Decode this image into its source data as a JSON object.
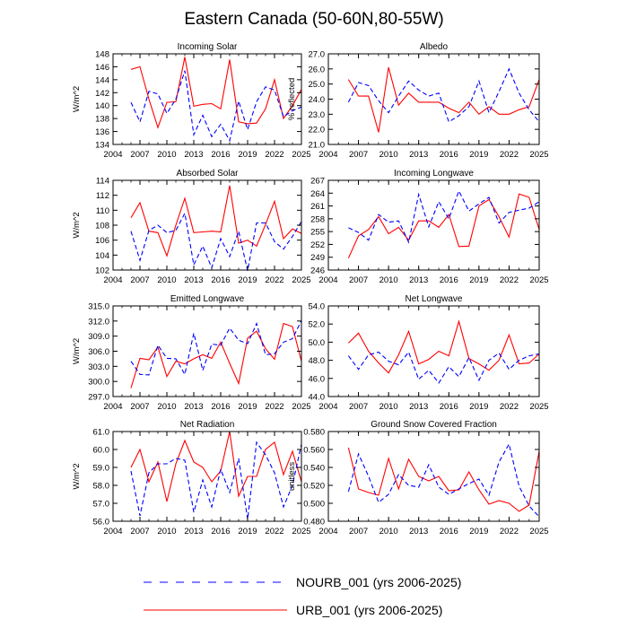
{
  "figure": {
    "title": "Eastern Canada (50-60N,80-55W)",
    "legend": [
      {
        "label": "NOURB_001 (yrs 2006-2025)",
        "style": "dashed",
        "color": "#0000ff"
      },
      {
        "label": "URB_001 (yrs 2006-2025)",
        "style": "solid",
        "color": "#ff0000"
      }
    ]
  },
  "chart_data": [
    {
      "type": "line",
      "title": "Incoming Solar",
      "ylabel": "W/m^2",
      "xlim": [
        2004,
        2025
      ],
      "ylim": [
        134,
        148
      ],
      "xticks": [
        2004,
        2007,
        2010,
        2013,
        2016,
        2019,
        2022,
        2025
      ],
      "yticks": [
        "134",
        "136",
        "138",
        "140",
        "142",
        "144",
        "146",
        "148"
      ],
      "x": [
        2006,
        2007,
        2008,
        2009,
        2010,
        2011,
        2012,
        2013,
        2014,
        2015,
        2016,
        2017,
        2018,
        2019,
        2020,
        2021,
        2022,
        2023,
        2024,
        2025
      ],
      "series": [
        {
          "name": "URB_001 (yrs 2006-2025)",
          "style": "solid",
          "color": "#ff0000",
          "values": [
            145.6,
            146.0,
            141.0,
            136.6,
            140.5,
            140.6,
            147.5,
            139.9,
            140.2,
            140.3,
            139.5,
            147.1,
            137.5,
            137.2,
            137.3,
            139.5,
            144.0,
            138.0,
            140.0,
            142.5
          ]
        },
        {
          "name": "NOURB_001 (yrs 2006-2025)",
          "style": "dashed",
          "color": "#0000ff",
          "values": [
            140.5,
            137.5,
            142.2,
            141.8,
            138.8,
            141.0,
            145.4,
            135.5,
            138.5,
            135.2,
            137.1,
            134.6,
            140.7,
            136.3,
            140.6,
            142.9,
            142.4,
            138.3,
            139.2,
            139.8
          ]
        }
      ]
    },
    {
      "type": "line",
      "title": "Albedo",
      "ylabel": "% reflected",
      "xlim": [
        2004,
        2025
      ],
      "ylim": [
        21,
        27
      ],
      "xticks": [
        2004,
        2007,
        2010,
        2013,
        2016,
        2019,
        2022,
        2025
      ],
      "yticks": [
        "21.0",
        "22.0",
        "23.0",
        "24.0",
        "25.0",
        "26.0",
        "27.0"
      ],
      "x": [
        2006,
        2007,
        2008,
        2009,
        2010,
        2011,
        2012,
        2013,
        2014,
        2015,
        2016,
        2017,
        2018,
        2019,
        2020,
        2021,
        2022,
        2023,
        2024,
        2025
      ],
      "series": [
        {
          "name": "URB_001 (yrs 2006-2025)",
          "style": "solid",
          "color": "#ff0000",
          "values": [
            25.3,
            24.2,
            24.2,
            21.8,
            26.1,
            23.6,
            24.4,
            23.8,
            23.8,
            23.8,
            23.4,
            23.1,
            23.8,
            23.0,
            23.5,
            23.0,
            23.0,
            23.3,
            23.5,
            25.3
          ]
        },
        {
          "name": "NOURB_001 (yrs 2006-2025)",
          "style": "dashed",
          "color": "#0000ff",
          "values": [
            23.8,
            25.1,
            24.9,
            23.9,
            23.1,
            24.2,
            25.2,
            24.6,
            24.2,
            24.4,
            22.5,
            22.9,
            23.5,
            25.2,
            23.1,
            24.5,
            26.0,
            24.4,
            23.3,
            22.5
          ]
        }
      ]
    },
    {
      "type": "line",
      "title": "Absorbed Solar",
      "ylabel": "W/m^2",
      "xlim": [
        2004,
        2025
      ],
      "ylim": [
        102,
        114
      ],
      "xticks": [
        2004,
        2007,
        2010,
        2013,
        2016,
        2019,
        2022,
        2025
      ],
      "yticks": [
        "102",
        "104",
        "106",
        "108",
        "110",
        "112",
        "114"
      ],
      "x": [
        2006,
        2007,
        2008,
        2009,
        2010,
        2011,
        2012,
        2013,
        2014,
        2015,
        2016,
        2017,
        2018,
        2019,
        2020,
        2021,
        2022,
        2023,
        2024,
        2025
      ],
      "series": [
        {
          "name": "URB_001 (yrs 2006-2025)",
          "style": "solid",
          "color": "#ff0000",
          "values": [
            109.0,
            111.0,
            107.2,
            107.0,
            103.9,
            108.0,
            111.6,
            107.0,
            107.1,
            107.2,
            107.1,
            113.3,
            105.6,
            106.0,
            105.2,
            108.1,
            111.2,
            106.2,
            107.5,
            106.9
          ]
        },
        {
          "name": "NOURB_001 (yrs 2006-2025)",
          "style": "dashed",
          "color": "#0000ff",
          "values": [
            107.2,
            103.3,
            107.3,
            108.0,
            107.0,
            107.3,
            109.6,
            102.7,
            105.2,
            102.3,
            106.2,
            103.8,
            107.2,
            101.9,
            108.3,
            108.3,
            105.8,
            104.8,
            106.5,
            108.5
          ]
        }
      ]
    },
    {
      "type": "line",
      "title": "Incoming Longwave",
      "ylabel": "",
      "xlim": [
        2004,
        2025
      ],
      "ylim": [
        246,
        267
      ],
      "xticks": [
        2004,
        2007,
        2010,
        2013,
        2016,
        2019,
        2022,
        2025
      ],
      "yticks": [
        "246",
        "249",
        "252",
        "255",
        "258",
        "261",
        "264",
        "267"
      ],
      "x": [
        2006,
        2007,
        2008,
        2009,
        2010,
        2011,
        2012,
        2013,
        2014,
        2015,
        2016,
        2017,
        2018,
        2019,
        2020,
        2021,
        2022,
        2023,
        2024,
        2025
      ],
      "series": [
        {
          "name": "URB_001 (yrs 2006-2025)",
          "style": "solid",
          "color": "#ff0000",
          "values": [
            248.8,
            254.0,
            255.5,
            258.5,
            254.5,
            256.0,
            253.0,
            257.5,
            257.5,
            256.0,
            259.0,
            251.5,
            251.6,
            261.0,
            262.5,
            258.5,
            253.7,
            263.8,
            263.0,
            255.5
          ]
        },
        {
          "name": "NOURB_001 (yrs 2006-2025)",
          "style": "dashed",
          "color": "#0000ff",
          "values": [
            255.9,
            254.8,
            253.0,
            259.0,
            257.2,
            257.5,
            252.5,
            263.7,
            256.1,
            262.0,
            258.0,
            264.5,
            259.8,
            261.5,
            263.0,
            257.0,
            259.5,
            260.0,
            260.5,
            262.0
          ]
        }
      ]
    },
    {
      "type": "line",
      "title": "Emitted Longwave",
      "ylabel": "W/m^2",
      "xlim": [
        2004,
        2025
      ],
      "ylim": [
        297,
        315
      ],
      "xticks": [
        2004,
        2007,
        2010,
        2013,
        2016,
        2019,
        2022,
        2025
      ],
      "yticks": [
        "297.0",
        "300.0",
        "303.0",
        "306.0",
        "309.0",
        "312.0",
        "315.0"
      ],
      "x": [
        2006,
        2007,
        2008,
        2009,
        2010,
        2011,
        2012,
        2013,
        2014,
        2015,
        2016,
        2017,
        2018,
        2019,
        2020,
        2021,
        2022,
        2023,
        2024,
        2025
      ],
      "series": [
        {
          "name": "URB_001 (yrs 2006-2025)",
          "style": "solid",
          "color": "#ff0000",
          "values": [
            298.7,
            304.6,
            304.3,
            306.8,
            301.0,
            304.0,
            303.5,
            304.5,
            305.3,
            304.6,
            307.8,
            303.6,
            299.6,
            308.6,
            310.0,
            306.5,
            304.4,
            311.5,
            310.9,
            304.0
          ]
        },
        {
          "name": "NOURB_001 (yrs 2006-2025)",
          "style": "dashed",
          "color": "#0000ff",
          "values": [
            304.0,
            301.4,
            301.3,
            307.2,
            304.6,
            304.5,
            301.4,
            309.6,
            302.2,
            307.4,
            307.2,
            310.6,
            308.2,
            307.5,
            311.5,
            305.3,
            305.5,
            307.8,
            308.5,
            312.1
          ]
        }
      ]
    },
    {
      "type": "line",
      "title": "Net Longwave",
      "ylabel": "",
      "xlim": [
        2004,
        2025
      ],
      "ylim": [
        44,
        54
      ],
      "xticks": [
        2004,
        2007,
        2010,
        2013,
        2016,
        2019,
        2022,
        2025
      ],
      "yticks": [
        "44.0",
        "46.0",
        "48.0",
        "50.0",
        "52.0",
        "54.0"
      ],
      "x": [
        2006,
        2007,
        2008,
        2009,
        2010,
        2011,
        2012,
        2013,
        2014,
        2015,
        2016,
        2017,
        2018,
        2019,
        2020,
        2021,
        2022,
        2023,
        2024,
        2025
      ],
      "series": [
        {
          "name": "URB_001 (yrs 2006-2025)",
          "style": "solid",
          "color": "#ff0000",
          "values": [
            49.9,
            51.0,
            49.0,
            47.7,
            46.6,
            48.6,
            51.2,
            47.6,
            48.1,
            49.0,
            48.5,
            52.3,
            48.2,
            47.6,
            46.9,
            48.0,
            50.8,
            47.6,
            47.7,
            48.7
          ]
        },
        {
          "name": "NOURB_001 (yrs 2006-2025)",
          "style": "dashed",
          "color": "#0000ff",
          "values": [
            48.5,
            47.0,
            48.6,
            48.9,
            47.9,
            47.5,
            48.9,
            45.9,
            46.9,
            45.5,
            47.3,
            46.2,
            48.3,
            45.8,
            48.0,
            48.8,
            47.0,
            48.0,
            48.5,
            48.7
          ]
        }
      ]
    },
    {
      "type": "line",
      "title": "Net Radiation",
      "ylabel": "W/m^2",
      "xlim": [
        2004,
        2025
      ],
      "ylim": [
        56,
        61
      ],
      "xticks": [
        2004,
        2007,
        2010,
        2013,
        2016,
        2019,
        2022,
        2025
      ],
      "yticks": [
        "56.0",
        "57.0",
        "58.0",
        "59.0",
        "60.0",
        "61.0"
      ],
      "x": [
        2006,
        2007,
        2008,
        2009,
        2010,
        2011,
        2012,
        2013,
        2014,
        2015,
        2016,
        2017,
        2018,
        2019,
        2020,
        2021,
        2022,
        2023,
        2024,
        2025
      ],
      "series": [
        {
          "name": "URB_001 (yrs 2006-2025)",
          "style": "solid",
          "color": "#ff0000",
          "values": [
            59.0,
            60.0,
            58.2,
            59.3,
            57.1,
            59.2,
            60.5,
            59.3,
            59.0,
            58.2,
            58.8,
            61.0,
            57.4,
            58.5,
            58.5,
            60.0,
            60.4,
            58.6,
            59.9,
            58.2
          ]
        },
        {
          "name": "NOURB_001 (yrs 2006-2025)",
          "style": "dashed",
          "color": "#0000ff",
          "values": [
            58.8,
            56.3,
            58.7,
            59.2,
            59.2,
            59.5,
            59.4,
            56.5,
            58.3,
            56.8,
            58.9,
            57.6,
            59.5,
            56.1,
            60.4,
            59.7,
            58.7,
            56.8,
            58.0,
            60.3
          ]
        }
      ]
    },
    {
      "type": "line",
      "title": "Ground Snow Covered Fraction",
      "ylabel": "unitless",
      "xlim": [
        2004,
        2025
      ],
      "ylim": [
        0.48,
        0.58
      ],
      "xticks": [
        2004,
        2007,
        2010,
        2013,
        2016,
        2019,
        2022,
        2025
      ],
      "yticks": [
        "0.480",
        "0.500",
        "0.520",
        "0.540",
        "0.560",
        "0.580"
      ],
      "x": [
        2006,
        2007,
        2008,
        2009,
        2010,
        2011,
        2012,
        2013,
        2014,
        2015,
        2016,
        2017,
        2018,
        2019,
        2020,
        2021,
        2022,
        2023,
        2024,
        2025
      ],
      "series": [
        {
          "name": "URB_001 (yrs 2006-2025)",
          "style": "solid",
          "color": "#ff0000",
          "values": [
            0.562,
            0.516,
            0.512,
            0.509,
            0.55,
            0.516,
            0.549,
            0.53,
            0.525,
            0.53,
            0.514,
            0.515,
            0.535,
            0.515,
            0.499,
            0.503,
            0.5,
            0.491,
            0.498,
            0.558
          ]
        },
        {
          "name": "NOURB_001 (yrs 2006-2025)",
          "style": "dashed",
          "color": "#0000ff",
          "values": [
            0.513,
            0.555,
            0.53,
            0.501,
            0.51,
            0.532,
            0.52,
            0.518,
            0.543,
            0.518,
            0.51,
            0.516,
            0.522,
            0.527,
            0.509,
            0.546,
            0.566,
            0.519,
            0.497,
            0.485
          ]
        }
      ]
    }
  ]
}
